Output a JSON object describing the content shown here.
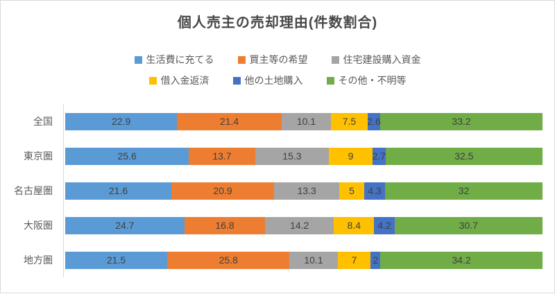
{
  "chart_data": {
    "type": "bar",
    "stacked": true,
    "orientation": "horizontal",
    "normalized_to_full_width": true,
    "title": "個人売主の売却理由(件数割合)",
    "xlabel": "",
    "ylabel": "",
    "gridlines": false,
    "data_labels": true,
    "legend_position": "top",
    "legend_rows": [
      [
        0,
        1,
        2
      ],
      [
        3,
        4,
        5
      ]
    ],
    "categories": [
      "全国",
      "東京圏",
      "名古屋圏",
      "大阪圏",
      "地方圏"
    ],
    "series": [
      {
        "name": "生活費に充てる",
        "color": "#5B9BD5",
        "values": [
          22.9,
          25.6,
          21.6,
          24.7,
          21.5
        ]
      },
      {
        "name": "買主等の希望",
        "color": "#ED7D31",
        "values": [
          21.4,
          13.7,
          20.9,
          16.8,
          25.8
        ]
      },
      {
        "name": "住宅建設購入資金",
        "color": "#A5A5A5",
        "values": [
          10.1,
          15.3,
          13.3,
          14.2,
          10.1
        ]
      },
      {
        "name": "借入金返済",
        "color": "#FFC000",
        "values": [
          7.5,
          9,
          5,
          8.4,
          7
        ]
      },
      {
        "name": "他の土地購入",
        "color": "#4472C4",
        "values": [
          2.6,
          2.7,
          4.3,
          4.2,
          2
        ]
      },
      {
        "name": "その他・不明等",
        "color": "#70AD47",
        "values": [
          33.2,
          32.5,
          32,
          30.7,
          34.2
        ]
      }
    ]
  },
  "style": {
    "title_color": "#474747",
    "label_color": "#3F3F3F",
    "category_color": "#595959",
    "axis_line_color": "#D9D9D9",
    "chart_border_color": "#D9D9D9"
  }
}
